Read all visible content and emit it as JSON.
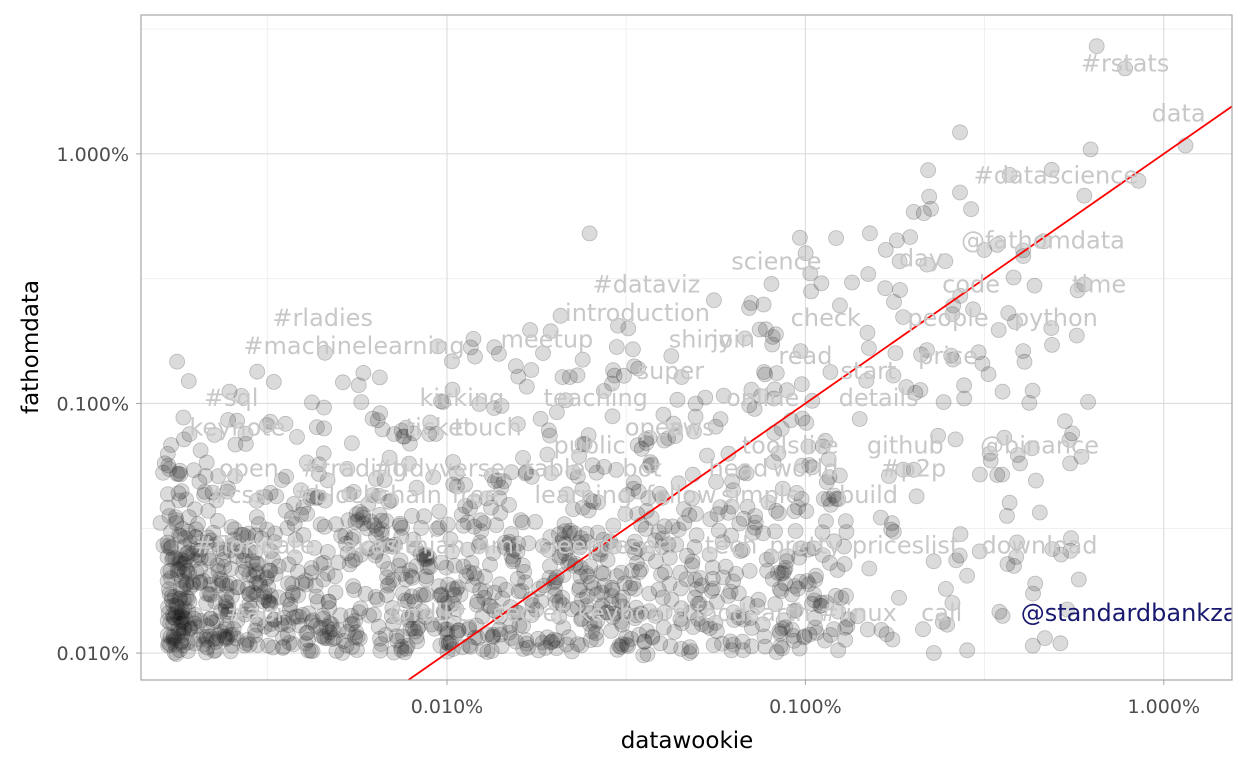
{
  "chart_data": {
    "type": "scatter",
    "xlabel": "datawookie",
    "ylabel": "fathomdata",
    "x_scale": "log10",
    "y_scale": "log10",
    "xlim": [
      0.0014,
      1.55
    ],
    "ylim": [
      0.0078,
      3.6
    ],
    "x_ticks": [
      {
        "value": 0.01,
        "label": "0.010%"
      },
      {
        "value": 0.1,
        "label": "0.100%"
      },
      {
        "value": 1,
        "label": "1.000%"
      }
    ],
    "y_ticks": [
      {
        "value": 0.01,
        "label": "0.010%"
      },
      {
        "value": 0.1,
        "label": "0.100%"
      },
      {
        "value": 1,
        "label": "1.000%"
      }
    ],
    "grid": true,
    "reference_line": {
      "type": "y=x",
      "color": "#ff0000"
    },
    "point_color": "#000000",
    "highlight_color": "#191970",
    "label_color": "#c8c8c8",
    "labels": [
      {
        "text": "#rstats",
        "x": 0.78,
        "y": 2.3
      },
      {
        "text": "data",
        "x": 1.1,
        "y": 1.45
      },
      {
        "text": "#datascience",
        "x": 0.5,
        "y": 0.82
      },
      {
        "text": "@fathomdata",
        "x": 0.46,
        "y": 0.45
      },
      {
        "text": "science",
        "x": 0.083,
        "y": 0.37
      },
      {
        "text": "day",
        "x": 0.21,
        "y": 0.38
      },
      {
        "text": "#dataviz",
        "x": 0.036,
        "y": 0.3
      },
      {
        "text": "code",
        "x": 0.29,
        "y": 0.3
      },
      {
        "text": "time",
        "x": 0.66,
        "y": 0.3
      },
      {
        "text": "introduction",
        "x": 0.034,
        "y": 0.23
      },
      {
        "text": "#rladies",
        "x": 0.0045,
        "y": 0.22
      },
      {
        "text": "check",
        "x": 0.114,
        "y": 0.22
      },
      {
        "text": "people",
        "x": 0.25,
        "y": 0.22
      },
      {
        "text": "python",
        "x": 0.5,
        "y": 0.22
      },
      {
        "text": "#machinelearning",
        "x": 0.0055,
        "y": 0.17
      },
      {
        "text": "meetup",
        "x": 0.019,
        "y": 0.18
      },
      {
        "text": "shiny",
        "x": 0.051,
        "y": 0.18
      },
      {
        "text": "join",
        "x": 0.063,
        "y": 0.18
      },
      {
        "text": "super",
        "x": 0.042,
        "y": 0.135
      },
      {
        "text": "read",
        "x": 0.1,
        "y": 0.155
      },
      {
        "text": "start",
        "x": 0.15,
        "y": 0.135
      },
      {
        "text": "price",
        "x": 0.25,
        "y": 0.155
      },
      {
        "text": "#sql",
        "x": 0.0025,
        "y": 0.105
      },
      {
        "text": "kicking",
        "x": 0.011,
        "y": 0.105
      },
      {
        "text": "teaching",
        "x": 0.026,
        "y": 0.105
      },
      {
        "text": "online",
        "x": 0.076,
        "y": 0.105
      },
      {
        "text": "details",
        "x": 0.16,
        "y": 0.105
      },
      {
        "text": "keynote",
        "x": 0.0026,
        "y": 0.08
      },
      {
        "text": "ticket",
        "x": 0.0095,
        "y": 0.08
      },
      {
        "text": "touch",
        "x": 0.013,
        "y": 0.08
      },
      {
        "text": "open",
        "x": 0.038,
        "y": 0.08
      },
      {
        "text": "aws",
        "x": 0.048,
        "y": 0.08
      },
      {
        "text": "public",
        "x": 0.025,
        "y": 0.068
      },
      {
        "text": "tools",
        "x": 0.08,
        "y": 0.068
      },
      {
        "text": "life",
        "x": 0.11,
        "y": 0.068
      },
      {
        "text": "github",
        "x": 0.19,
        "y": 0.068
      },
      {
        "text": "@binance",
        "x": 0.45,
        "y": 0.068
      },
      {
        "text": "open",
        "x": 0.0028,
        "y": 0.055
      },
      {
        "text": "#trading",
        "x": 0.0055,
        "y": 0.055
      },
      {
        "text": "#tidyverse",
        "x": 0.0095,
        "y": 0.055
      },
      {
        "text": "table",
        "x": 0.02,
        "y": 0.055
      },
      {
        "text": "bot",
        "x": 0.035,
        "y": 0.055
      },
      {
        "text": "head",
        "x": 0.065,
        "y": 0.055
      },
      {
        "text": "world",
        "x": 0.1,
        "y": 0.055
      },
      {
        "text": "#p2p",
        "x": 0.2,
        "y": 0.055
      },
      {
        "text": "#css",
        "x": 0.0026,
        "y": 0.043
      },
      {
        "text": "#blockchain",
        "x": 0.006,
        "y": 0.043
      },
      {
        "text": "free",
        "x": 0.012,
        "y": 0.043
      },
      {
        "text": "learning",
        "x": 0.024,
        "y": 0.043
      },
      {
        "text": "follow",
        "x": 0.045,
        "y": 0.043
      },
      {
        "text": "simple",
        "x": 0.075,
        "y": 0.043
      },
      {
        "text": "build",
        "x": 0.15,
        "y": 0.043
      },
      {
        "text": "#floridate",
        "x": 0.0029,
        "y": 0.027
      },
      {
        "text": "akas",
        "x": 0.0061,
        "y": 0.027
      },
      {
        "text": "4thjan",
        "x": 0.0088,
        "y": 0.027
      },
      {
        "text": "nmt",
        "x": 0.014,
        "y": 0.027
      },
      {
        "text": "sleep",
        "x": 0.022,
        "y": 0.027
      },
      {
        "text": "desert",
        "x": 0.034,
        "y": 0.027
      },
      {
        "text": "tech",
        "x": 0.062,
        "y": 0.027
      },
      {
        "text": "pretty",
        "x": 0.1,
        "y": 0.027
      },
      {
        "text": "prices",
        "x": 0.17,
        "y": 0.027
      },
      {
        "text": "list",
        "x": 0.24,
        "y": 0.027
      },
      {
        "text": "download",
        "x": 0.45,
        "y": 0.027
      },
      {
        "text": "#api",
        "x": 0.0029,
        "y": 0.0145
      },
      {
        "text": "@rdlkt",
        "x": 0.0088,
        "y": 0.0145
      },
      {
        "text": "secret",
        "x": 0.017,
        "y": 0.0145
      },
      {
        "text": "keyboard",
        "x": 0.033,
        "y": 0.0145
      },
      {
        "text": "food",
        "x": 0.058,
        "y": 0.0145
      },
      {
        "text": "earth",
        "x": 0.084,
        "y": 0.0145
      },
      {
        "text": "#linux",
        "x": 0.14,
        "y": 0.0145
      },
      {
        "text": "call",
        "x": 0.24,
        "y": 0.0145
      },
      {
        "text": "@standardbankza",
        "x": 0.8,
        "y": 0.0145,
        "highlight": true
      }
    ],
    "points": []
  }
}
